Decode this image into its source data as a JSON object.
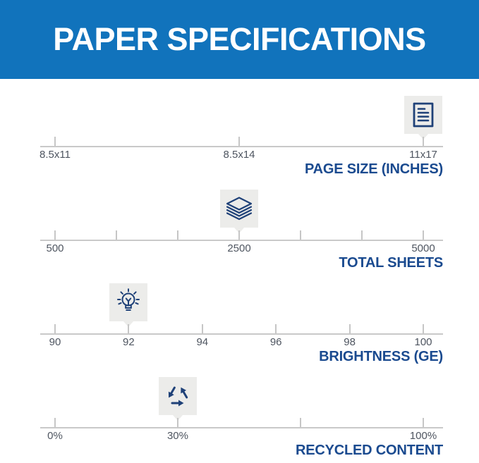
{
  "header": {
    "title": "PAPER SPECIFICATIONS"
  },
  "colors": {
    "banner_blue": "#1173bc",
    "header_text": "#ffffff",
    "section_title_blue": "#1a4a8f",
    "icon_navy": "#1f4178",
    "tick_label_gray": "#4e5560",
    "scale_line_gray": "#c9c9c9",
    "marker_box_gray": "#ececea"
  },
  "icons": [
    "document-icon",
    "paper-stack-icon",
    "lightbulb-icon",
    "recycle-icon"
  ],
  "chart_data": [
    {
      "type": "scale",
      "title": "PAGE SIZE (INCHES)",
      "icon": "document-icon",
      "value": "11x17",
      "marker_pos": 1,
      "ticks": [
        {
          "pos": 0,
          "label": "8.5x11"
        },
        {
          "pos": 0.5,
          "label": "8.5x14"
        },
        {
          "pos": 1,
          "label": "11x17"
        }
      ]
    },
    {
      "type": "scale",
      "title": "TOTAL SHEETS",
      "icon": "paper-stack-icon",
      "value": "2500",
      "marker_pos": 0.5,
      "ticks": [
        {
          "pos": 0,
          "label": "500"
        },
        {
          "pos": 0.1667,
          "label": ""
        },
        {
          "pos": 0.3333,
          "label": ""
        },
        {
          "pos": 0.5,
          "label": "2500"
        },
        {
          "pos": 0.6667,
          "label": ""
        },
        {
          "pos": 0.8333,
          "label": ""
        },
        {
          "pos": 1,
          "label": "5000"
        }
      ]
    },
    {
      "type": "scale",
      "title": "BRIGHTNESS (GE)",
      "icon": "lightbulb-icon",
      "value": "92",
      "marker_pos": 0.2,
      "ticks": [
        {
          "pos": 0,
          "label": "90"
        },
        {
          "pos": 0.2,
          "label": "92"
        },
        {
          "pos": 0.4,
          "label": "94"
        },
        {
          "pos": 0.6,
          "label": "96"
        },
        {
          "pos": 0.8,
          "label": "98"
        },
        {
          "pos": 1,
          "label": "100"
        }
      ]
    },
    {
      "type": "scale",
      "title": "RECYCLED CONTENT",
      "icon": "recycle-icon",
      "value": "30%",
      "marker_pos": 0.3333,
      "ticks": [
        {
          "pos": 0,
          "label": "0%"
        },
        {
          "pos": 0.3333,
          "label": "30%"
        },
        {
          "pos": 0.6667,
          "label": ""
        },
        {
          "pos": 1,
          "label": "100%"
        }
      ]
    }
  ]
}
